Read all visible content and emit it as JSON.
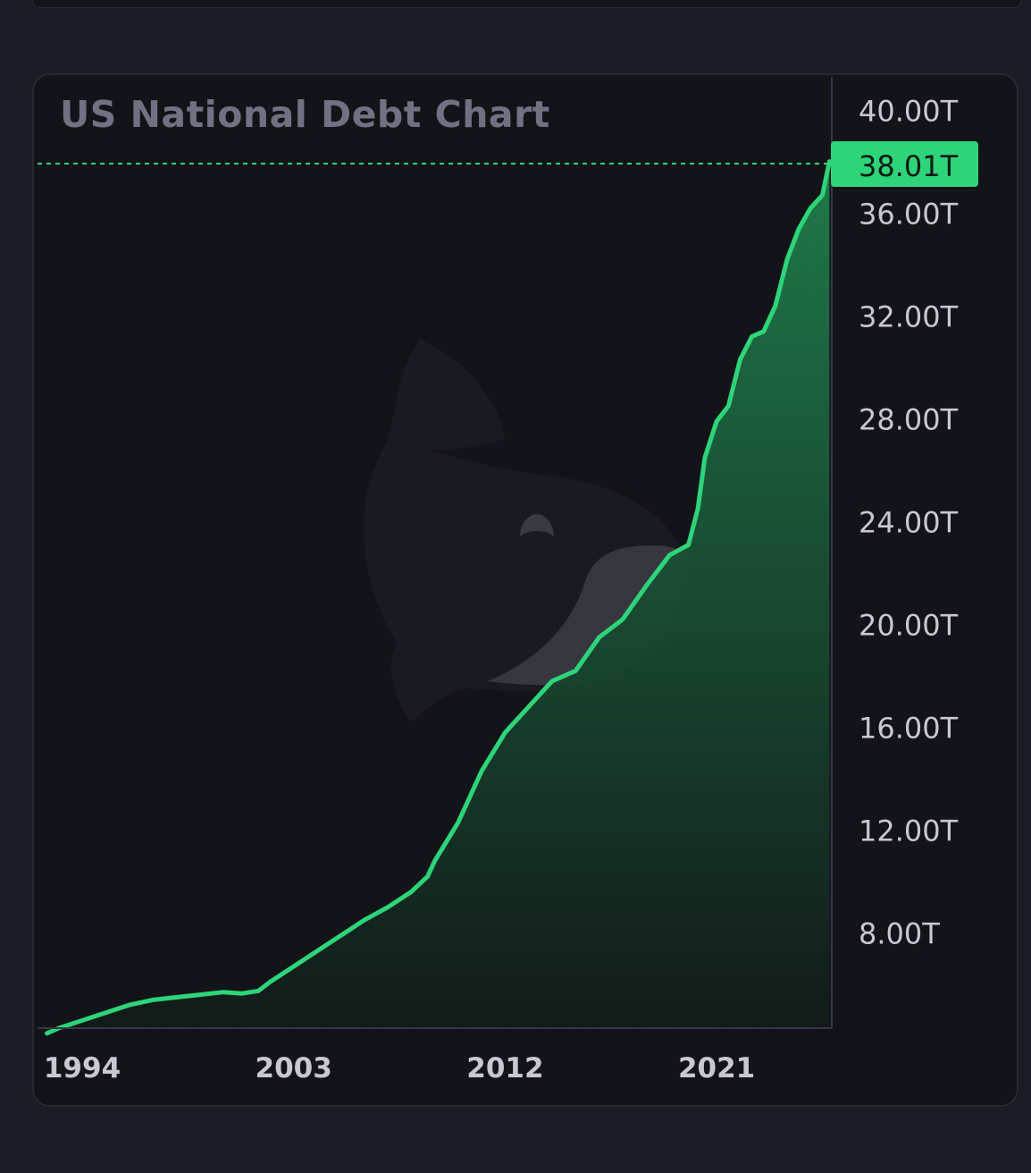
{
  "chart_data": {
    "type": "area",
    "title": "US National Debt Chart",
    "x_tick_labels": [
      "1994",
      "2003",
      "2012",
      "2021"
    ],
    "y_tick_labels": [
      "40.00T",
      "36.00T",
      "32.00T",
      "28.00T",
      "24.00T",
      "20.00T",
      "16.00T",
      "12.00T",
      "8.00T"
    ],
    "ylim": [
      4.3,
      41.3
    ],
    "xlim": [
      1992.1,
      2025.9
    ],
    "grid": false,
    "legend": "none",
    "current_value": 38.01,
    "current_label": "38.01T",
    "series": [
      {
        "x": [
          1992.5,
          1993.0,
          1994.0,
          1995.0,
          1996.0,
          1997.0,
          1998.0,
          1999.0,
          2000.0,
          2000.8,
          2001.5,
          2002.0,
          2003.0,
          2004.0,
          2005.0,
          2006.0,
          2007.0,
          2008.0,
          2008.7,
          2009.0,
          2010.0,
          2011.0,
          2012.0,
          2013.0,
          2014.0,
          2015.0,
          2016.0,
          2017.0,
          2018.0,
          2019.0,
          2019.8,
          2020.2,
          2020.5,
          2021.0,
          2021.5,
          2022.0,
          2022.5,
          2023.0,
          2023.5,
          2024.0,
          2024.5,
          2025.0,
          2025.5,
          2025.8
        ],
        "values": [
          4.1,
          4.3,
          4.6,
          4.9,
          5.2,
          5.4,
          5.5,
          5.6,
          5.7,
          5.65,
          5.75,
          6.1,
          6.7,
          7.3,
          7.9,
          8.5,
          9.0,
          9.6,
          10.2,
          10.8,
          12.3,
          14.3,
          15.8,
          16.8,
          17.8,
          18.2,
          19.5,
          20.2,
          21.5,
          22.7,
          23.1,
          24.5,
          26.5,
          27.9,
          28.5,
          30.3,
          31.2,
          31.4,
          32.4,
          34.2,
          35.4,
          36.2,
          36.7,
          38.01
        ]
      }
    ],
    "colors": {
      "line": "#2ed47a",
      "fill_top": "#1f7e4c",
      "fill_bottom": "#121a18",
      "price_badge": "#2ed47a",
      "axis": "#353849"
    }
  }
}
